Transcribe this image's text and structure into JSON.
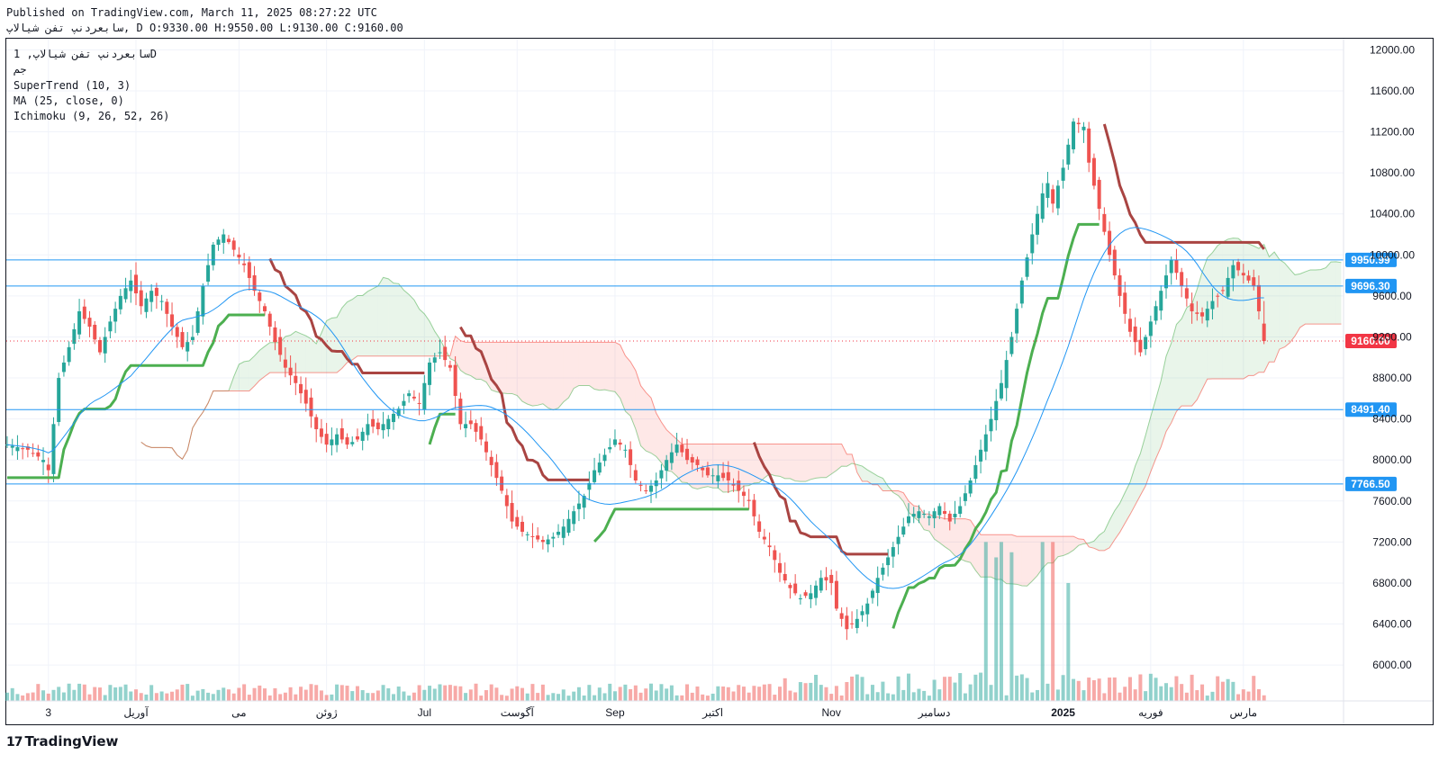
{
  "header": {
    "line1": "Published on TradingView.com, March 11, 2025 08:27:22 UTC",
    "line2": "سابعردنپ تفن شیالاپ, D O:9330.00 H:9550.00 L:9130.00 C:9160.00"
  },
  "legend": {
    "symbol_line": "سابعردنپ تفن شیالاپ, 1D",
    "exchange": "جم",
    "supertrend": "SuperTrend (10, 3)",
    "ma": "MA (25, close, 0)",
    "ichimoku": "Ichimoku (9, 26, 52, 26)"
  },
  "logo": {
    "mark": "17",
    "text": "TradingView"
  },
  "colors": {
    "up": "#26a69a",
    "down": "#ef5350",
    "supertrend_up": "#4caf50",
    "supertrend_down": "#a94442",
    "ma": "#2196f3",
    "hline": "#2196f3",
    "last_price": "#f23645",
    "cloud_bull": "#4caf50",
    "cloud_bear": "#f44336"
  },
  "chart_data": {
    "type": "candlestick",
    "interval": "1D",
    "ylim": [
      5650,
      12100
    ],
    "y_ticks": [
      6000,
      6400,
      6800,
      7200,
      7600,
      8000,
      8400,
      8800,
      9200,
      9600,
      10000,
      10400,
      10800,
      11200,
      11600,
      12000
    ],
    "y_tick_labels": [
      "6000.00",
      "6400.00",
      "6800.00",
      "7200.00",
      "7600.00",
      "8000.00",
      "8400.00",
      "8800.00",
      "9200.00",
      "9600.00",
      "10000.00",
      "10400.00",
      "10800.00",
      "11200.00",
      "11600.00",
      "12000.00"
    ],
    "x_labels": [
      {
        "label": "3",
        "index": 8
      },
      {
        "label": "آوریل",
        "index": 25
      },
      {
        "label": "می",
        "index": 45
      },
      {
        "label": "ژوئن",
        "index": 62
      },
      {
        "label": "Jul",
        "index": 81
      },
      {
        "label": "آگوست",
        "index": 99
      },
      {
        "label": "Sep",
        "index": 118
      },
      {
        "label": "اکتبر",
        "index": 137
      },
      {
        "label": "Nov",
        "index": 160
      },
      {
        "label": "دسامبر",
        "index": 180
      },
      {
        "label": "2025",
        "index": 205
      },
      {
        "label": "فوریه",
        "index": 222
      },
      {
        "label": "مارس",
        "index": 240
      }
    ],
    "horizontal_lines": [
      9950.99,
      9696.3,
      8491.4,
      7766.5
    ],
    "horizontal_line_labels": [
      "9950.99",
      "9696.30",
      "8491.40",
      "7766.50"
    ],
    "last_price": 9160.0,
    "last_price_label": "9160.00",
    "close_anchors": [
      [
        0,
        8150
      ],
      [
        4,
        8100
      ],
      [
        7,
        8000
      ],
      [
        8,
        7900
      ],
      [
        10,
        8800
      ],
      [
        12,
        9100
      ],
      [
        14,
        9450
      ],
      [
        16,
        9300
      ],
      [
        18,
        9050
      ],
      [
        20,
        9350
      ],
      [
        22,
        9600
      ],
      [
        24,
        9750
      ],
      [
        26,
        9500
      ],
      [
        28,
        9650
      ],
      [
        30,
        9550
      ],
      [
        32,
        9300
      ],
      [
        34,
        9100
      ],
      [
        36,
        9200
      ],
      [
        38,
        9700
      ],
      [
        40,
        10100
      ],
      [
        42,
        10200
      ],
      [
        44,
        10050
      ],
      [
        46,
        9900
      ],
      [
        48,
        9650
      ],
      [
        50,
        9450
      ],
      [
        52,
        9150
      ],
      [
        54,
        8900
      ],
      [
        56,
        8750
      ],
      [
        58,
        8550
      ],
      [
        60,
        8300
      ],
      [
        62,
        8150
      ],
      [
        64,
        8250
      ],
      [
        66,
        8150
      ],
      [
        68,
        8200
      ],
      [
        70,
        8350
      ],
      [
        72,
        8300
      ],
      [
        74,
        8400
      ],
      [
        76,
        8500
      ],
      [
        78,
        8650
      ],
      [
        80,
        8550
      ],
      [
        82,
        8950
      ],
      [
        84,
        9050
      ],
      [
        86,
        8900
      ],
      [
        88,
        8350
      ],
      [
        90,
        8350
      ],
      [
        92,
        8200
      ],
      [
        94,
        7950
      ],
      [
        96,
        7700
      ],
      [
        98,
        7400
      ],
      [
        100,
        7300
      ],
      [
        102,
        7250
      ],
      [
        104,
        7200
      ],
      [
        106,
        7250
      ],
      [
        108,
        7350
      ],
      [
        110,
        7500
      ],
      [
        112,
        7650
      ],
      [
        114,
        7900
      ],
      [
        116,
        8050
      ],
      [
        118,
        8200
      ],
      [
        120,
        8100
      ],
      [
        122,
        7800
      ],
      [
        124,
        7700
      ],
      [
        126,
        7800
      ],
      [
        128,
        8000
      ],
      [
        130,
        8150
      ],
      [
        132,
        8000
      ],
      [
        134,
        7950
      ],
      [
        136,
        7850
      ],
      [
        138,
        7850
      ],
      [
        140,
        7800
      ],
      [
        142,
        7700
      ],
      [
        144,
        7600
      ],
      [
        146,
        7300
      ],
      [
        148,
        7150
      ],
      [
        150,
        6900
      ],
      [
        152,
        6750
      ],
      [
        154,
        6650
      ],
      [
        156,
        6700
      ],
      [
        158,
        6850
      ],
      [
        160,
        6800
      ],
      [
        161,
        6550
      ],
      [
        163,
        6350
      ],
      [
        165,
        6450
      ],
      [
        167,
        6600
      ],
      [
        169,
        6850
      ],
      [
        171,
        7050
      ],
      [
        173,
        7250
      ],
      [
        175,
        7450
      ],
      [
        177,
        7500
      ],
      [
        179,
        7450
      ],
      [
        181,
        7550
      ],
      [
        183,
        7400
      ],
      [
        185,
        7550
      ],
      [
        187,
        7800
      ],
      [
        189,
        8100
      ],
      [
        191,
        8400
      ],
      [
        193,
        8750
      ],
      [
        195,
        9200
      ],
      [
        197,
        9750
      ],
      [
        199,
        10200
      ],
      [
        201,
        10600
      ],
      [
        202,
        10700
      ],
      [
        203,
        10500
      ],
      [
        205,
        10850
      ],
      [
        207,
        11300
      ],
      [
        209,
        11250
      ],
      [
        210,
        10900
      ],
      [
        212,
        10450
      ],
      [
        214,
        10000
      ],
      [
        216,
        9600
      ],
      [
        218,
        9250
      ],
      [
        220,
        9050
      ],
      [
        222,
        9350
      ],
      [
        224,
        9650
      ],
      [
        226,
        9950
      ],
      [
        228,
        9700
      ],
      [
        230,
        9450
      ],
      [
        232,
        9400
      ],
      [
        234,
        9550
      ],
      [
        236,
        9650
      ],
      [
        238,
        9900
      ],
      [
        240,
        9800
      ],
      [
        242,
        9700
      ],
      [
        243,
        9450
      ],
      [
        244,
        9160
      ]
    ],
    "ohlc_note": "Daily candles, close values traced from chart; last candle O 9330 H 9550 L 9130 C 9160",
    "volume_spikes": [
      [
        190,
        7200
      ],
      [
        192,
        7050
      ],
      [
        193,
        7200
      ],
      [
        195,
        7100
      ],
      [
        201,
        7200
      ],
      [
        203,
        7200
      ],
      [
        206,
        6800
      ]
    ],
    "grid": true,
    "price_scale": "right"
  }
}
